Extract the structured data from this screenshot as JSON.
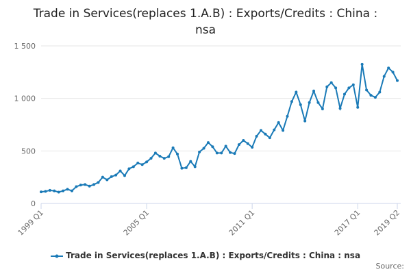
{
  "chart_data": {
    "type": "line",
    "title": "Trade in Services(replaces 1.A.B) : Exports/Credits : China : nsa",
    "categories": [
      "1999 Q1",
      null,
      null,
      null,
      null,
      null,
      null,
      null,
      null,
      null,
      null,
      null,
      null,
      null,
      null,
      null,
      null,
      null,
      null,
      null,
      null,
      null,
      null,
      null,
      "2005 Q1",
      null,
      null,
      null,
      null,
      null,
      null,
      null,
      null,
      null,
      null,
      null,
      null,
      null,
      null,
      null,
      null,
      null,
      null,
      null,
      null,
      null,
      null,
      null,
      "2011 Q1",
      null,
      null,
      null,
      null,
      null,
      null,
      null,
      null,
      null,
      null,
      null,
      null,
      null,
      null,
      null,
      null,
      null,
      null,
      null,
      null,
      null,
      null,
      null,
      "2017 Q1",
      null,
      null,
      null,
      null,
      null,
      null,
      null,
      null,
      "2019 Q2"
    ],
    "series": [
      {
        "name": "Trade in Services(replaces 1.A.B) : Exports/Credits : China : nsa",
        "color": "#1a7ab7",
        "values": [
          110,
          115,
          125,
          120,
          108,
          120,
          135,
          120,
          160,
          175,
          180,
          165,
          180,
          200,
          250,
          225,
          255,
          270,
          310,
          265,
          330,
          350,
          385,
          370,
          395,
          430,
          480,
          450,
          430,
          445,
          530,
          470,
          335,
          340,
          400,
          350,
          490,
          525,
          580,
          540,
          480,
          480,
          545,
          485,
          475,
          560,
          600,
          570,
          535,
          640,
          695,
          660,
          625,
          700,
          770,
          695,
          830,
          970,
          1060,
          940,
          785,
          960,
          1070,
          960,
          900,
          1110,
          1150,
          1100,
          905,
          1040,
          1100,
          1130,
          915,
          1325,
          1080,
          1030,
          1010,
          1060,
          1210,
          1290,
          1250,
          1170
        ]
      }
    ],
    "ylim": [
      0,
      1500
    ],
    "yticks": [
      0,
      500,
      {
        "value": 1000,
        "label": "1 000"
      },
      {
        "value": 1500,
        "label": "1 500"
      }
    ],
    "grid": true,
    "source": "Source:"
  }
}
